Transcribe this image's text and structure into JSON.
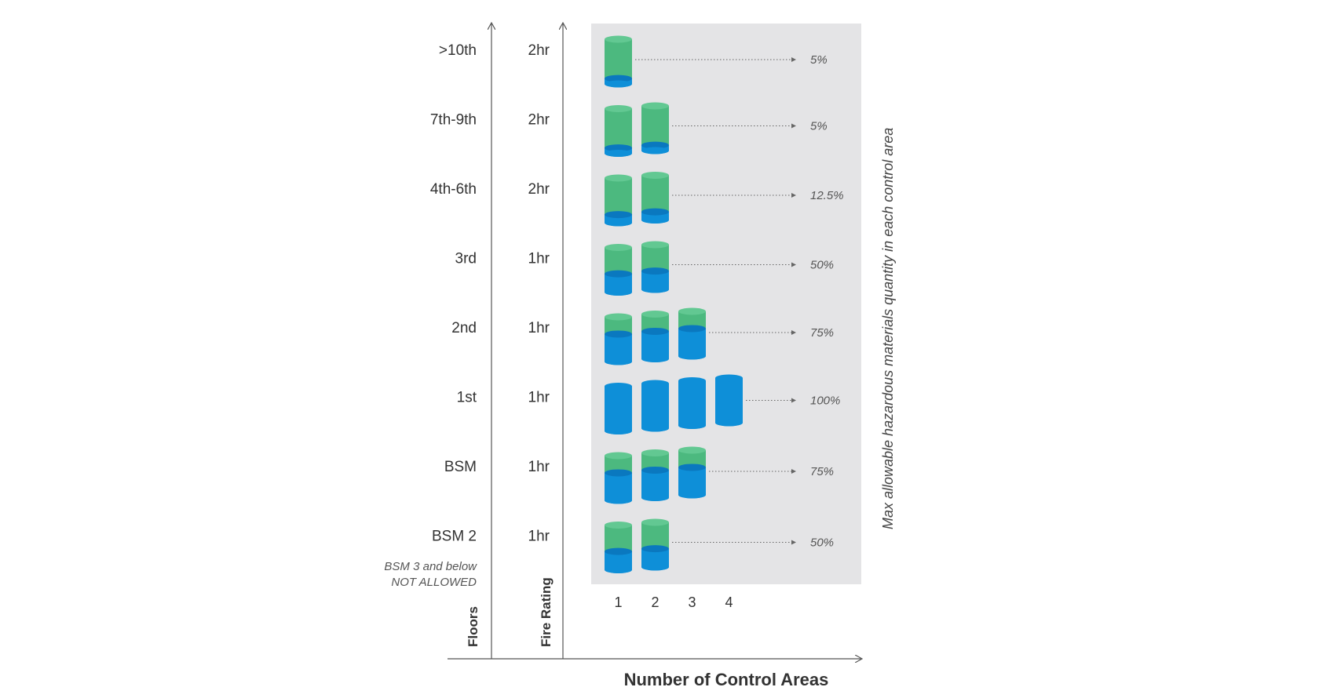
{
  "labels": {
    "floors_axis": "Floors",
    "fire_axis": "Fire Rating",
    "x_axis": "Number of Control Areas",
    "side_title": "Max allowable hazardous materials quantity in each control area",
    "note_line1": "BSM 3 and below",
    "note_line2": "NOT ALLOWED"
  },
  "columns": [
    "1",
    "2",
    "3",
    "4"
  ],
  "colors": {
    "panel": "#e4e4e6",
    "green": "#4cb97f",
    "green_top": "#62c892",
    "blue": "#0e8fd8",
    "blue_dark": "#0a78bf",
    "axis": "#555555",
    "dotted": "#666666"
  },
  "rows": [
    {
      "floor": ">10th",
      "fire": "2hr",
      "areas": 1,
      "percent": "5%",
      "fill": 0.05
    },
    {
      "floor": "7th-9th",
      "fire": "2hr",
      "areas": 2,
      "percent": "5%",
      "fill": 0.05
    },
    {
      "floor": "4th-6th",
      "fire": "2hr",
      "areas": 2,
      "percent": "12.5%",
      "fill": 0.125
    },
    {
      "floor": "3rd",
      "fire": "1hr",
      "areas": 2,
      "percent": "50%",
      "fill": 0.5
    },
    {
      "floor": "2nd",
      "fire": "1hr",
      "areas": 3,
      "percent": "75%",
      "fill": 0.75
    },
    {
      "floor": "1st",
      "fire": "1hr",
      "areas": 4,
      "percent": "100%",
      "fill": 1.0
    },
    {
      "floor": "BSM",
      "fire": "1hr",
      "areas": 3,
      "percent": "75%",
      "fill": 0.75
    },
    {
      "floor": "BSM 2",
      "fire": "1hr",
      "areas": 2,
      "percent": "50%",
      "fill": 0.5
    }
  ]
}
